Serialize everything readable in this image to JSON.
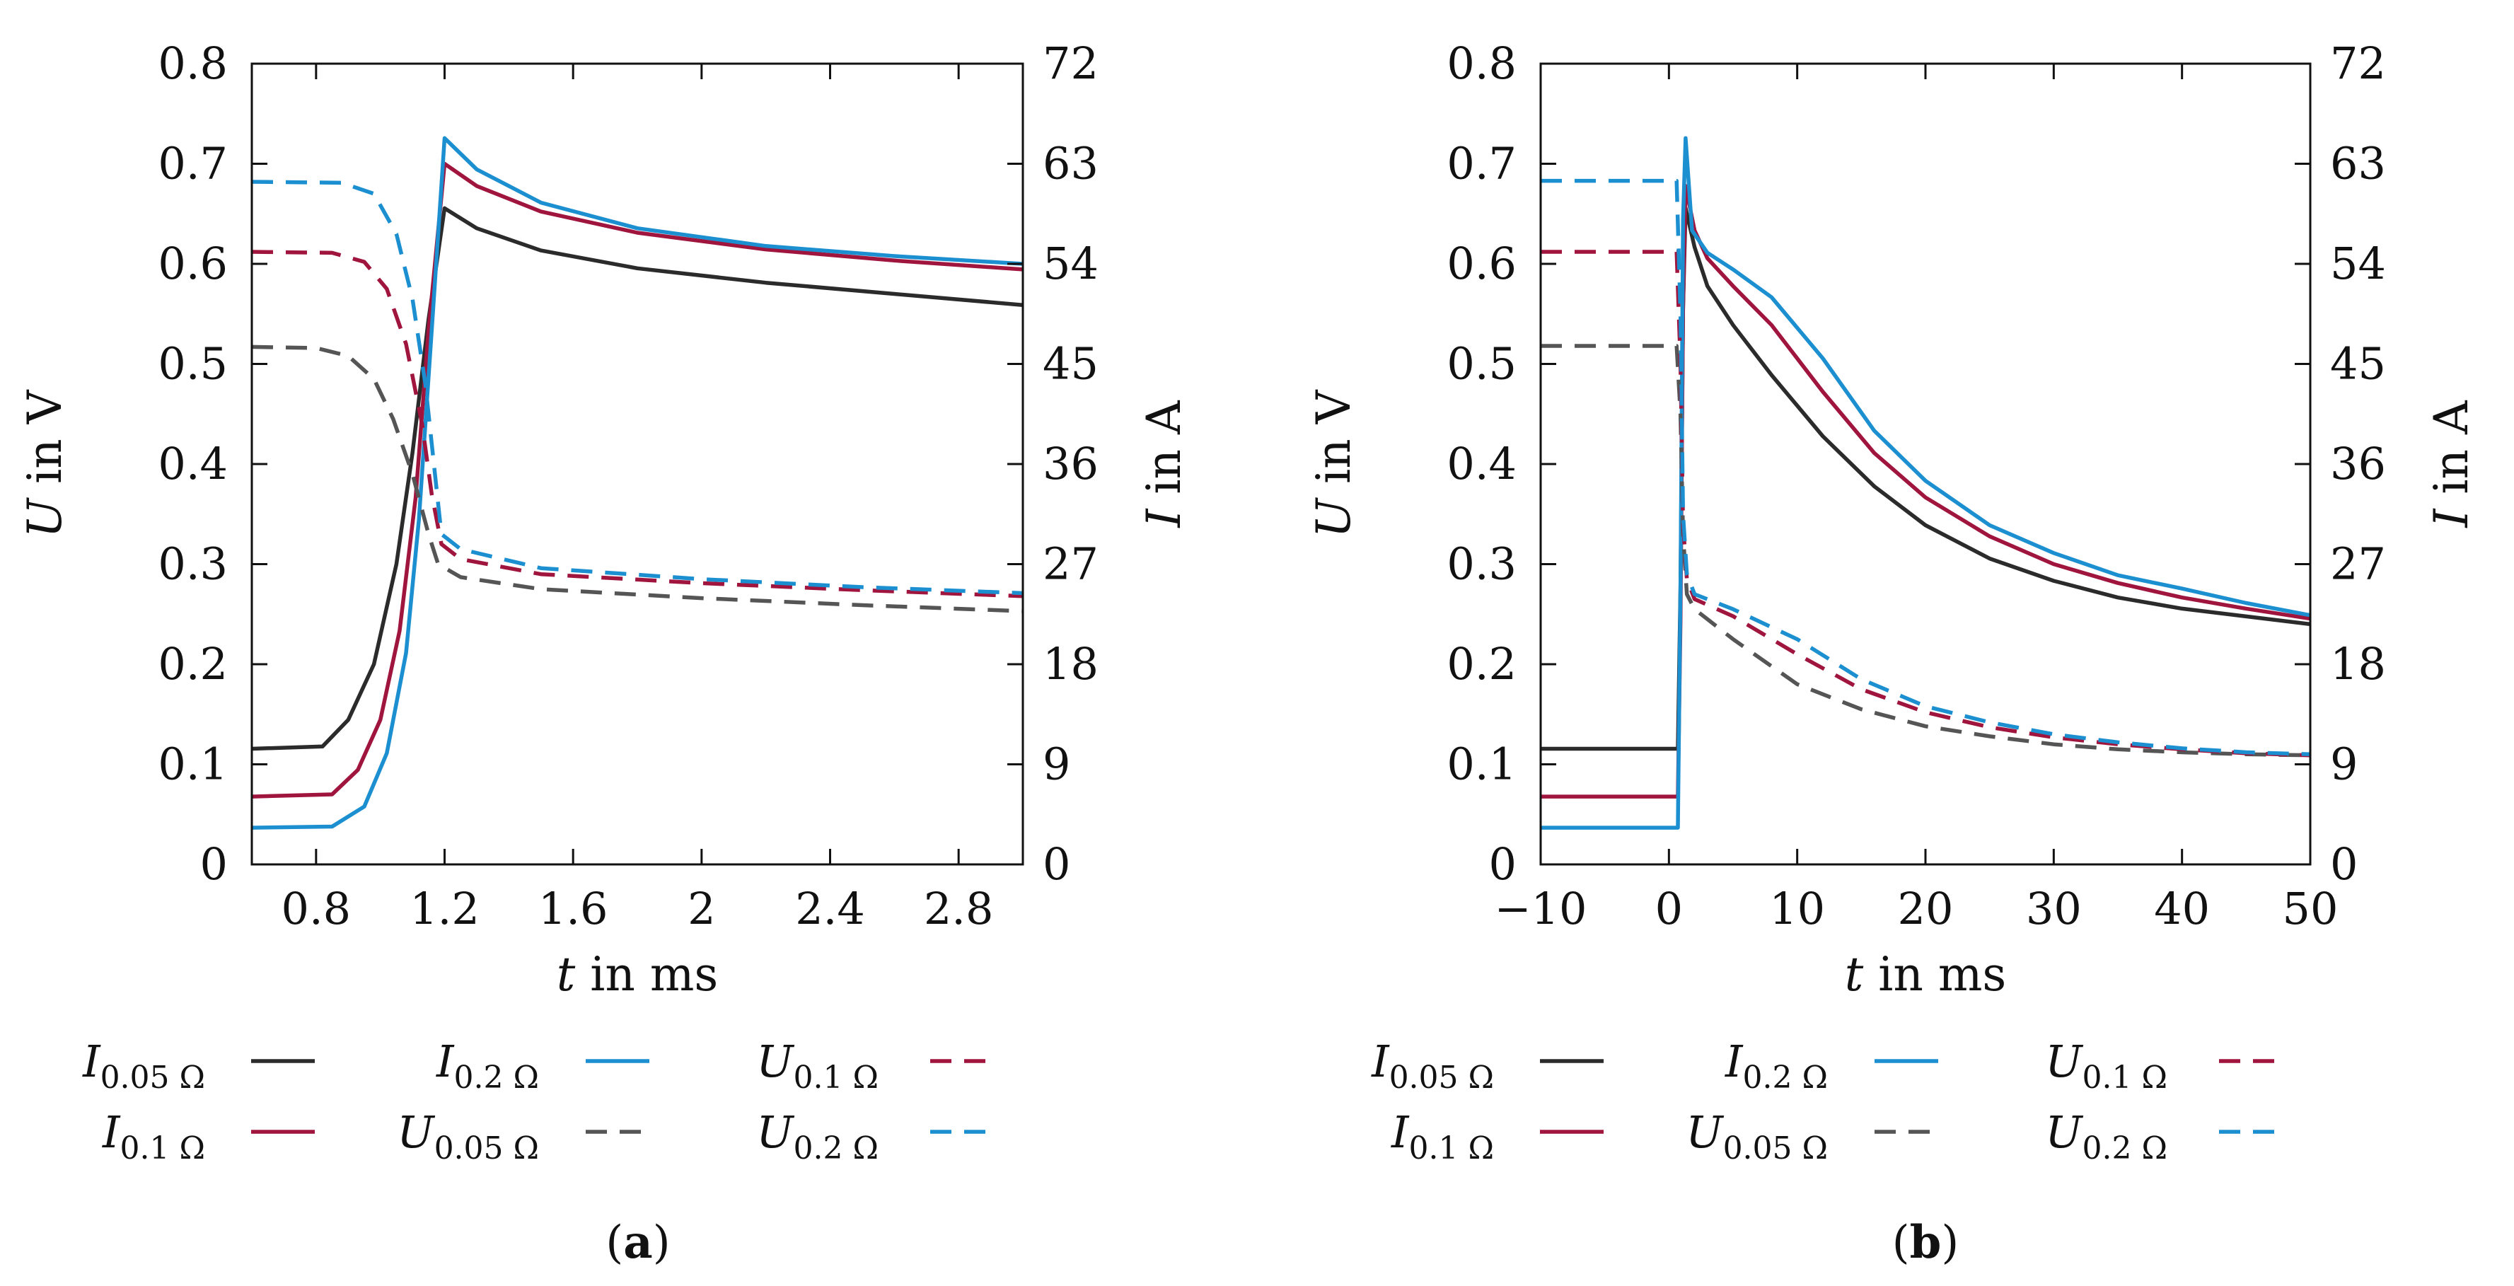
{
  "chart_data": [
    {
      "id": "a",
      "type": "line",
      "caption": "a",
      "xlabel": {
        "var": "t",
        "unit": "in ms"
      },
      "ylabel_left": {
        "var": "U",
        "unit": "in V"
      },
      "ylabel_right": {
        "var": "I",
        "unit": "in A"
      },
      "xlim": [
        0.6,
        3.0
      ],
      "ylim_left": [
        0,
        0.8
      ],
      "ylim_right": [
        0,
        72
      ],
      "xticks": [
        0.8,
        1.2,
        1.6,
        2,
        2.4,
        2.8
      ],
      "xtick_labels": [
        "0.8",
        "1.2",
        "1.6",
        "2",
        "2.4",
        "2.8"
      ],
      "yticks_left": [
        0,
        0.1,
        0.2,
        0.3,
        0.4,
        0.5,
        0.6,
        0.7,
        0.8
      ],
      "ytick_labels_left": [
        "0",
        "0.1",
        "0.2",
        "0.3",
        "0.4",
        "0.5",
        "0.6",
        "0.7",
        "0.8"
      ],
      "yticks_right": [
        0,
        9,
        18,
        27,
        36,
        45,
        54,
        63,
        72
      ],
      "ytick_labels_right": [
        "0",
        "9",
        "18",
        "27",
        "36",
        "45",
        "54",
        "63",
        "72"
      ],
      "series": [
        {
          "name": "I_0.05Ω",
          "axis": "right",
          "color": "#2b2b2b",
          "dash": false,
          "x": [
            0.6,
            0.82,
            0.9,
            0.98,
            1.05,
            1.1,
            1.15,
            1.2,
            1.3,
            1.5,
            1.8,
            2.2,
            2.6,
            3.0
          ],
          "y": [
            10.4,
            10.6,
            13,
            18,
            27,
            37,
            49,
            59,
            57.2,
            55.2,
            53.6,
            52.3,
            51.3,
            50.3
          ]
        },
        {
          "name": "I_0.1Ω",
          "axis": "right",
          "color": "#a0153e",
          "dash": false,
          "x": [
            0.6,
            0.85,
            0.93,
            1.0,
            1.06,
            1.11,
            1.15,
            1.2,
            1.3,
            1.5,
            1.8,
            2.2,
            2.6,
            3.0
          ],
          "y": [
            6.1,
            6.3,
            8.5,
            13,
            21,
            33,
            48,
            63,
            61,
            58.7,
            56.8,
            55.3,
            54.3,
            53.5
          ]
        },
        {
          "name": "I_0.2Ω",
          "axis": "right",
          "color": "#1c8fd0",
          "dash": false,
          "x": [
            0.6,
            0.85,
            0.95,
            1.02,
            1.08,
            1.12,
            1.16,
            1.2,
            1.3,
            1.5,
            1.8,
            2.2,
            2.6,
            3.0
          ],
          "y": [
            3.3,
            3.4,
            5.2,
            10,
            19,
            31,
            48,
            65.3,
            62.5,
            59.5,
            57.2,
            55.6,
            54.7,
            54.0
          ]
        },
        {
          "name": "U_0.05Ω",
          "axis": "left",
          "color": "#555555",
          "dash": true,
          "x": [
            0.6,
            0.8,
            0.9,
            0.98,
            1.04,
            1.1,
            1.15,
            1.18,
            1.25,
            1.5,
            2.0,
            2.5,
            3.0
          ],
          "y": [
            0.517,
            0.516,
            0.508,
            0.485,
            0.445,
            0.39,
            0.33,
            0.3,
            0.287,
            0.275,
            0.266,
            0.259,
            0.253
          ]
        },
        {
          "name": "U_0.1Ω",
          "axis": "left",
          "color": "#a0153e",
          "dash": true,
          "x": [
            0.6,
            0.85,
            0.95,
            1.02,
            1.08,
            1.13,
            1.16,
            1.19,
            1.25,
            1.5,
            2.0,
            2.5,
            3.0
          ],
          "y": [
            0.612,
            0.611,
            0.602,
            0.575,
            0.52,
            0.44,
            0.37,
            0.32,
            0.305,
            0.29,
            0.281,
            0.274,
            0.268
          ]
        },
        {
          "name": "U_0.2Ω",
          "axis": "left",
          "color": "#1c8fd0",
          "dash": true,
          "x": [
            0.6,
            0.88,
            0.98,
            1.05,
            1.1,
            1.14,
            1.17,
            1.19,
            1.25,
            1.5,
            2.0,
            2.5,
            3.0
          ],
          "y": [
            0.682,
            0.681,
            0.67,
            0.63,
            0.565,
            0.48,
            0.39,
            0.33,
            0.315,
            0.296,
            0.285,
            0.277,
            0.271
          ]
        }
      ]
    },
    {
      "id": "b",
      "type": "line",
      "caption": "b",
      "xlabel": {
        "var": "t",
        "unit": "in ms"
      },
      "ylabel_left": {
        "var": "U",
        "unit": "in V"
      },
      "ylabel_right": {
        "var": "I",
        "unit": "in A"
      },
      "xlim": [
        -10,
        50
      ],
      "ylim_left": [
        0,
        0.8
      ],
      "ylim_right": [
        0,
        72
      ],
      "xticks": [
        -10,
        0,
        10,
        20,
        30,
        40,
        50
      ],
      "xtick_labels": [
        "−10",
        "0",
        "10",
        "20",
        "30",
        "40",
        "50"
      ],
      "yticks_left": [
        0,
        0.1,
        0.2,
        0.3,
        0.4,
        0.5,
        0.6,
        0.7,
        0.8
      ],
      "ytick_labels_left": [
        "0",
        "0.1",
        "0.2",
        "0.3",
        "0.4",
        "0.5",
        "0.6",
        "0.7",
        "0.8"
      ],
      "yticks_right": [
        0,
        9,
        18,
        27,
        36,
        45,
        54,
        63,
        72
      ],
      "ytick_labels_right": [
        "0",
        "9",
        "18",
        "27",
        "36",
        "45",
        "54",
        "63",
        "72"
      ],
      "series": [
        {
          "name": "I_0.05Ω",
          "axis": "right",
          "color": "#2b2b2b",
          "dash": false,
          "x": [
            -10,
            0.7,
            0.9,
            1.1,
            1.3,
            2,
            3,
            5,
            8,
            12,
            16,
            20,
            25,
            30,
            35,
            40,
            45,
            50
          ],
          "y": [
            10.4,
            10.4,
            25,
            50,
            59,
            55.5,
            52,
            48.5,
            44,
            38.5,
            34,
            30.5,
            27.5,
            25.5,
            24,
            23,
            22.3,
            21.6
          ]
        },
        {
          "name": "I_0.1Ω",
          "axis": "right",
          "color": "#a0153e",
          "dash": false,
          "x": [
            -10,
            0.7,
            0.9,
            1.1,
            1.3,
            2,
            3,
            5,
            8,
            12,
            16,
            20,
            25,
            30,
            35,
            40,
            45,
            50
          ],
          "y": [
            6.1,
            6.1,
            22,
            50,
            61,
            57,
            54.5,
            52,
            48.5,
            42.5,
            37,
            33,
            29.5,
            27,
            25.3,
            24,
            23,
            22.1
          ]
        },
        {
          "name": "I_0.2Ω",
          "axis": "right",
          "color": "#1c8fd0",
          "dash": false,
          "x": [
            -10,
            0.7,
            0.9,
            1.1,
            1.3,
            1.8,
            3,
            5,
            8,
            12,
            16,
            20,
            25,
            30,
            35,
            40,
            45,
            50
          ],
          "y": [
            3.3,
            3.3,
            25,
            58,
            65.3,
            57,
            55,
            53.5,
            51,
            45.5,
            39,
            34.5,
            30.5,
            28,
            26,
            24.8,
            23.5,
            22.4
          ]
        },
        {
          "name": "U_0.05Ω",
          "axis": "left",
          "color": "#555555",
          "dash": true,
          "x": [
            -10,
            0.6,
            0.9,
            1.1,
            1.4,
            2,
            5,
            10,
            15,
            20,
            25,
            30,
            35,
            40,
            45,
            50
          ],
          "y": [
            0.518,
            0.518,
            0.45,
            0.33,
            0.27,
            0.255,
            0.225,
            0.18,
            0.155,
            0.138,
            0.128,
            0.12,
            0.115,
            0.112,
            0.11,
            0.109
          ]
        },
        {
          "name": "U_0.1Ω",
          "axis": "left",
          "color": "#a0153e",
          "dash": true,
          "x": [
            -10,
            0.6,
            0.9,
            1.1,
            1.4,
            2,
            5,
            10,
            15,
            20,
            25,
            30,
            35,
            40,
            45,
            50
          ],
          "y": [
            0.612,
            0.612,
            0.5,
            0.34,
            0.285,
            0.265,
            0.248,
            0.21,
            0.175,
            0.152,
            0.137,
            0.127,
            0.12,
            0.115,
            0.111,
            0.109
          ]
        },
        {
          "name": "U_0.2Ω",
          "axis": "left",
          "color": "#1c8fd0",
          "dash": true,
          "x": [
            -10,
            0.6,
            0.9,
            1.1,
            1.4,
            2,
            5,
            10,
            15,
            20,
            25,
            30,
            35,
            40,
            45,
            50
          ],
          "y": [
            0.683,
            0.683,
            0.55,
            0.35,
            0.29,
            0.27,
            0.255,
            0.225,
            0.185,
            0.158,
            0.142,
            0.13,
            0.122,
            0.116,
            0.112,
            0.11
          ]
        }
      ]
    }
  ],
  "legend": [
    {
      "var": "I",
      "sub": "0.05 Ω",
      "series": "I_0.05Ω"
    },
    {
      "var": "I",
      "sub": "0.2 Ω",
      "series": "I_0.2Ω"
    },
    {
      "var": "U",
      "sub": "0.1 Ω",
      "series": "U_0.1Ω"
    },
    {
      "var": "I",
      "sub": "0.1 Ω",
      "series": "I_0.1Ω"
    },
    {
      "var": "U",
      "sub": "0.05 Ω",
      "series": "U_0.05Ω"
    },
    {
      "var": "U",
      "sub": "0.2 Ω",
      "series": "U_0.2Ω"
    }
  ]
}
